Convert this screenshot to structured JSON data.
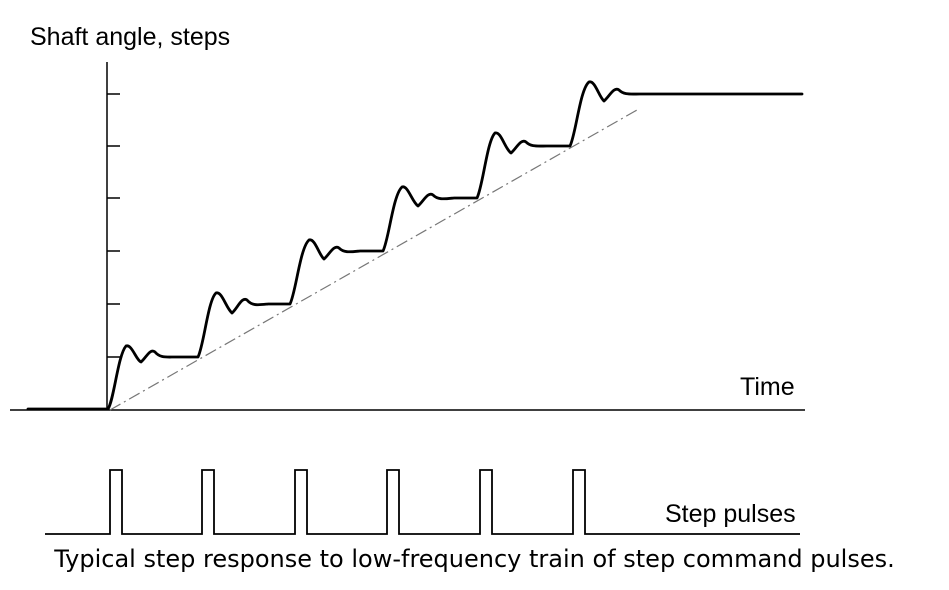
{
  "figure": {
    "y_axis_label": "Shaft angle, steps",
    "time_label": "Time",
    "pulse_label": "Step pulses",
    "caption": "Typical step response to low-frequency train of step command pulses."
  },
  "colors": {
    "line": "#000000",
    "background": "#ffffff"
  },
  "chart_data": {
    "type": "line",
    "series": [
      {
        "values_description_none": true,
        "steps": [
          0,
          1,
          2,
          3,
          4,
          5,
          6
        ]
      }
    ],
    "pulse_count": 6,
    "y_ticks": 6
  }
}
